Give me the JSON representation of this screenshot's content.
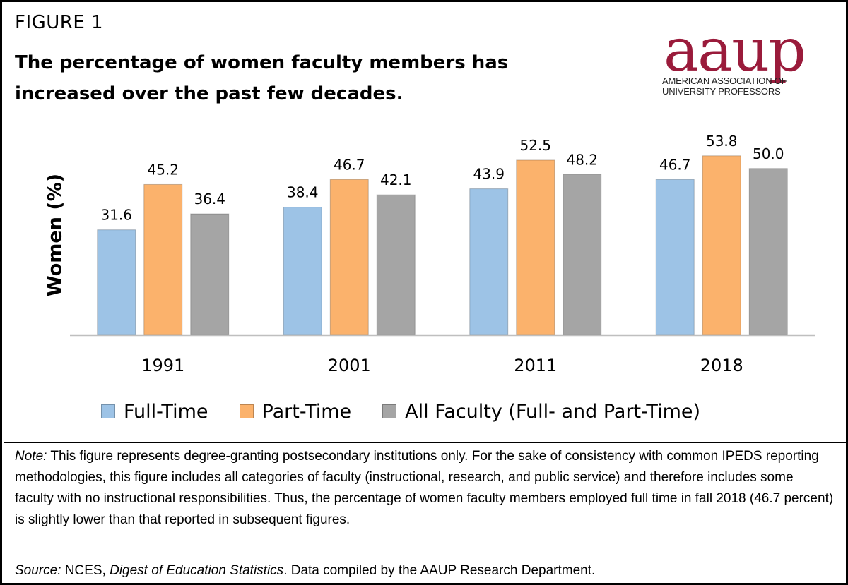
{
  "figure_label": "FIGURE 1",
  "title": "The percentage of women faculty members has increased over the past few decades.",
  "logo": {
    "word": "aaup",
    "line1": "AMERICAN ASSOCIATION OF",
    "line2": "UNIVERSITY PROFESSORS",
    "color": "#9a1b3b"
  },
  "chart_data": {
    "type": "bar",
    "categories": [
      "1991",
      "2001",
      "2011",
      "2018"
    ],
    "series": [
      {
        "name": "Full-Time",
        "values": [
          31.6,
          38.4,
          43.9,
          46.7
        ],
        "labels": [
          "31.6",
          "38.4",
          "43.9",
          "46.7"
        ],
        "color": "#9dc3e6"
      },
      {
        "name": "Part-Time",
        "values": [
          45.2,
          46.7,
          52.5,
          53.8
        ],
        "labels": [
          "45.2",
          "46.7",
          "52.5",
          "53.8"
        ],
        "color": "#fbb26c"
      },
      {
        "name": "All Faculty (Full- and Part-Time)",
        "values": [
          36.4,
          42.1,
          48.2,
          50.0
        ],
        "labels": [
          "36.4",
          "42.1",
          "48.2",
          "50.0"
        ],
        "color": "#a5a5a5"
      }
    ],
    "ylabel": "Women (%)",
    "xlabel": "",
    "ylim": [
      0,
      60
    ],
    "grid": false,
    "legend_position": "bottom"
  },
  "note": {
    "prefix": "Note:",
    "text": " This figure represents degree-granting postsecondary institutions only. For the sake of consistency with common IPEDS reporting methodologies, this figure includes all categories of faculty (instructional, research, and public service) and therefore includes some faculty with no instructional responsibilities. Thus, the percentage of women faculty members employed full time in fall 2018 (46.7 percent) is slightly lower than that reported in subsequent figures."
  },
  "source": {
    "prefix": "Source:",
    "part1": " NCES, ",
    "publication": "Digest of Education Statistics",
    "part2": ". Data compiled by the AAUP Research Department."
  }
}
